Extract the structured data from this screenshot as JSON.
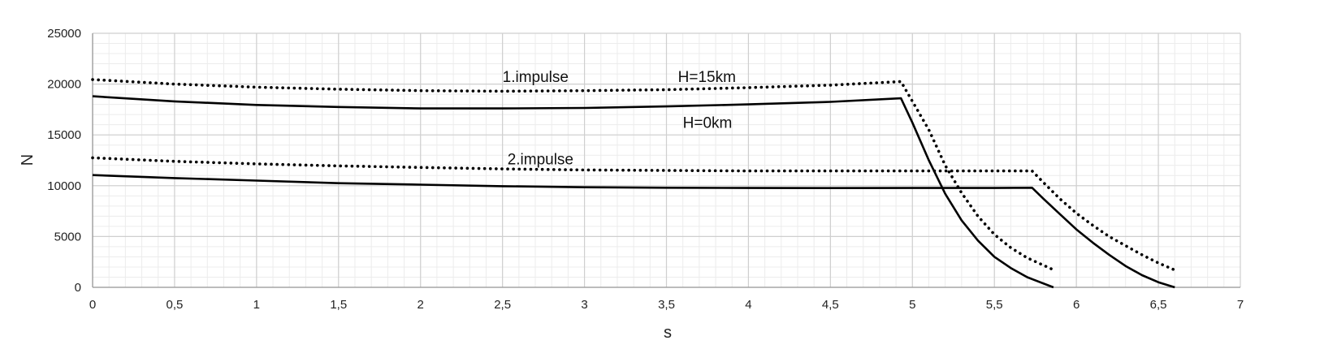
{
  "chart_data": {
    "type": "line",
    "title": "",
    "xlabel": "s",
    "ylabel": "N",
    "xlim": [
      0,
      7
    ],
    "ylim": [
      0,
      25000
    ],
    "x_ticks": [
      0,
      0.5,
      1,
      1.5,
      2,
      2.5,
      3,
      3.5,
      4,
      4.5,
      5,
      5.5,
      6,
      6.5,
      7
    ],
    "x_tick_labels": [
      "0",
      "0,5",
      "1",
      "1,5",
      "2",
      "2,5",
      "3",
      "3,5",
      "4",
      "4,5",
      "5",
      "5,5",
      "6",
      "6,5",
      "7"
    ],
    "y_ticks": [
      0,
      5000,
      10000,
      15000,
      20000,
      25000
    ],
    "y_tick_labels": [
      "0",
      "5000",
      "10000",
      "15000",
      "20000",
      "25000"
    ],
    "grid": true,
    "series": [
      {
        "style": "dotted",
        "x": [
          0,
          0.5,
          1,
          1.5,
          2,
          2.5,
          3,
          3.5,
          4,
          4.5,
          4.93,
          5.0,
          5.1,
          5.2,
          5.3,
          5.4,
          5.5,
          5.6,
          5.7,
          5.85
        ],
        "y": [
          20450,
          20000,
          19700,
          19500,
          19350,
          19300,
          19350,
          19450,
          19650,
          19900,
          20250,
          18300,
          15500,
          12000,
          9300,
          7000,
          5200,
          3900,
          2900,
          1800
        ]
      },
      {
        "style": "solid",
        "x": [
          0,
          0.5,
          1,
          1.5,
          2,
          2.5,
          3,
          3.5,
          4,
          4.5,
          4.93,
          5.0,
          5.1,
          5.2,
          5.3,
          5.4,
          5.5,
          5.6,
          5.7,
          5.86
        ],
        "y": [
          18800,
          18300,
          17950,
          17750,
          17600,
          17600,
          17650,
          17800,
          18000,
          18250,
          18600,
          16200,
          12500,
          9200,
          6600,
          4600,
          3000,
          1900,
          1000,
          0
        ]
      },
      {
        "style": "dotted",
        "x": [
          0,
          0.5,
          1,
          1.5,
          2,
          2.5,
          3,
          3.5,
          4,
          4.5,
          5,
          5.5,
          5.73,
          5.8,
          5.9,
          6.0,
          6.1,
          6.2,
          6.3,
          6.4,
          6.5,
          6.6
        ],
        "y": [
          12750,
          12400,
          12150,
          11950,
          11800,
          11650,
          11550,
          11500,
          11450,
          11450,
          11450,
          11450,
          11450,
          10300,
          8700,
          7300,
          6100,
          5000,
          4100,
          3200,
          2400,
          1700
        ]
      },
      {
        "style": "solid",
        "x": [
          0,
          0.5,
          1,
          1.5,
          2,
          2.5,
          3,
          3.5,
          4,
          4.5,
          5,
          5.5,
          5.73,
          5.8,
          5.9,
          6.0,
          6.1,
          6.2,
          6.3,
          6.4,
          6.5,
          6.6
        ],
        "y": [
          11050,
          10750,
          10500,
          10250,
          10100,
          9950,
          9850,
          9800,
          9780,
          9770,
          9780,
          9780,
          9800,
          8700,
          7200,
          5700,
          4400,
          3200,
          2100,
          1200,
          500,
          0
        ]
      }
    ],
    "annotations": [
      {
        "text": "1.impulse",
        "x": 2.5,
        "y": 20200
      },
      {
        "text": "H=15km",
        "x": 3.57,
        "y": 20200
      },
      {
        "text": "H=0km",
        "x": 3.6,
        "y": 15700
      },
      {
        "text": "2.impulse",
        "x": 2.53,
        "y": 12100
      }
    ]
  }
}
